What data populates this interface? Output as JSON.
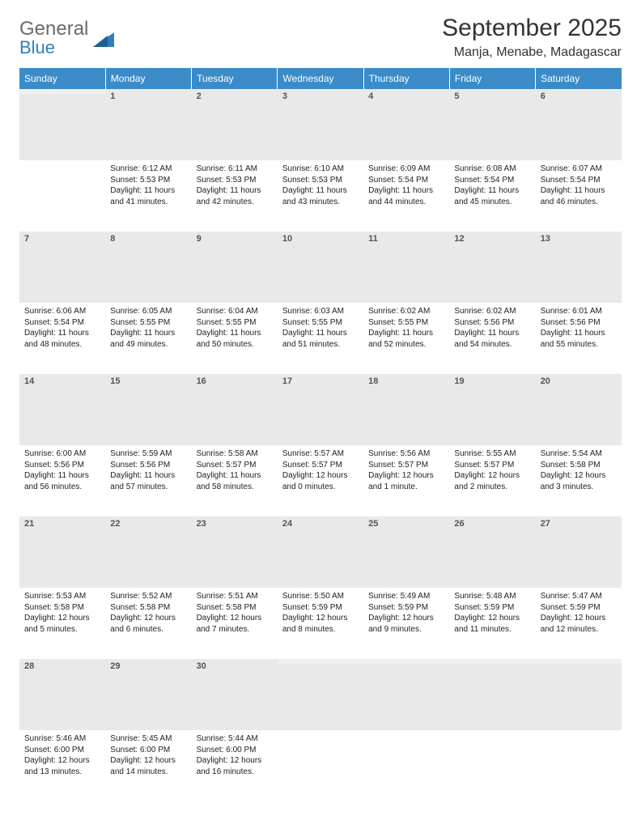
{
  "logo": {
    "word1": "General",
    "word2": "Blue"
  },
  "title": "September 2025",
  "location": "Manja, Menabe, Madagascar",
  "colors": {
    "header_bg": "#3b8bc8",
    "header_text": "#ffffff",
    "rule": "#2f6fa3",
    "daynum_bg": "#e9e9e9",
    "logo_gray": "#6b6b6b",
    "logo_blue": "#2f7ec0"
  },
  "weekdays": [
    "Sunday",
    "Monday",
    "Tuesday",
    "Wednesday",
    "Thursday",
    "Friday",
    "Saturday"
  ],
  "weeks": [
    [
      {
        "day": "",
        "sunrise": "",
        "sunset": "",
        "daylight": ""
      },
      {
        "day": "1",
        "sunrise": "Sunrise: 6:12 AM",
        "sunset": "Sunset: 5:53 PM",
        "daylight": "Daylight: 11 hours and 41 minutes."
      },
      {
        "day": "2",
        "sunrise": "Sunrise: 6:11 AM",
        "sunset": "Sunset: 5:53 PM",
        "daylight": "Daylight: 11 hours and 42 minutes."
      },
      {
        "day": "3",
        "sunrise": "Sunrise: 6:10 AM",
        "sunset": "Sunset: 5:53 PM",
        "daylight": "Daylight: 11 hours and 43 minutes."
      },
      {
        "day": "4",
        "sunrise": "Sunrise: 6:09 AM",
        "sunset": "Sunset: 5:54 PM",
        "daylight": "Daylight: 11 hours and 44 minutes."
      },
      {
        "day": "5",
        "sunrise": "Sunrise: 6:08 AM",
        "sunset": "Sunset: 5:54 PM",
        "daylight": "Daylight: 11 hours and 45 minutes."
      },
      {
        "day": "6",
        "sunrise": "Sunrise: 6:07 AM",
        "sunset": "Sunset: 5:54 PM",
        "daylight": "Daylight: 11 hours and 46 minutes."
      }
    ],
    [
      {
        "day": "7",
        "sunrise": "Sunrise: 6:06 AM",
        "sunset": "Sunset: 5:54 PM",
        "daylight": "Daylight: 11 hours and 48 minutes."
      },
      {
        "day": "8",
        "sunrise": "Sunrise: 6:05 AM",
        "sunset": "Sunset: 5:55 PM",
        "daylight": "Daylight: 11 hours and 49 minutes."
      },
      {
        "day": "9",
        "sunrise": "Sunrise: 6:04 AM",
        "sunset": "Sunset: 5:55 PM",
        "daylight": "Daylight: 11 hours and 50 minutes."
      },
      {
        "day": "10",
        "sunrise": "Sunrise: 6:03 AM",
        "sunset": "Sunset: 5:55 PM",
        "daylight": "Daylight: 11 hours and 51 minutes."
      },
      {
        "day": "11",
        "sunrise": "Sunrise: 6:02 AM",
        "sunset": "Sunset: 5:55 PM",
        "daylight": "Daylight: 11 hours and 52 minutes."
      },
      {
        "day": "12",
        "sunrise": "Sunrise: 6:02 AM",
        "sunset": "Sunset: 5:56 PM",
        "daylight": "Daylight: 11 hours and 54 minutes."
      },
      {
        "day": "13",
        "sunrise": "Sunrise: 6:01 AM",
        "sunset": "Sunset: 5:56 PM",
        "daylight": "Daylight: 11 hours and 55 minutes."
      }
    ],
    [
      {
        "day": "14",
        "sunrise": "Sunrise: 6:00 AM",
        "sunset": "Sunset: 5:56 PM",
        "daylight": "Daylight: 11 hours and 56 minutes."
      },
      {
        "day": "15",
        "sunrise": "Sunrise: 5:59 AM",
        "sunset": "Sunset: 5:56 PM",
        "daylight": "Daylight: 11 hours and 57 minutes."
      },
      {
        "day": "16",
        "sunrise": "Sunrise: 5:58 AM",
        "sunset": "Sunset: 5:57 PM",
        "daylight": "Daylight: 11 hours and 58 minutes."
      },
      {
        "day": "17",
        "sunrise": "Sunrise: 5:57 AM",
        "sunset": "Sunset: 5:57 PM",
        "daylight": "Daylight: 12 hours and 0 minutes."
      },
      {
        "day": "18",
        "sunrise": "Sunrise: 5:56 AM",
        "sunset": "Sunset: 5:57 PM",
        "daylight": "Daylight: 12 hours and 1 minute."
      },
      {
        "day": "19",
        "sunrise": "Sunrise: 5:55 AM",
        "sunset": "Sunset: 5:57 PM",
        "daylight": "Daylight: 12 hours and 2 minutes."
      },
      {
        "day": "20",
        "sunrise": "Sunrise: 5:54 AM",
        "sunset": "Sunset: 5:58 PM",
        "daylight": "Daylight: 12 hours and 3 minutes."
      }
    ],
    [
      {
        "day": "21",
        "sunrise": "Sunrise: 5:53 AM",
        "sunset": "Sunset: 5:58 PM",
        "daylight": "Daylight: 12 hours and 5 minutes."
      },
      {
        "day": "22",
        "sunrise": "Sunrise: 5:52 AM",
        "sunset": "Sunset: 5:58 PM",
        "daylight": "Daylight: 12 hours and 6 minutes."
      },
      {
        "day": "23",
        "sunrise": "Sunrise: 5:51 AM",
        "sunset": "Sunset: 5:58 PM",
        "daylight": "Daylight: 12 hours and 7 minutes."
      },
      {
        "day": "24",
        "sunrise": "Sunrise: 5:50 AM",
        "sunset": "Sunset: 5:59 PM",
        "daylight": "Daylight: 12 hours and 8 minutes."
      },
      {
        "day": "25",
        "sunrise": "Sunrise: 5:49 AM",
        "sunset": "Sunset: 5:59 PM",
        "daylight": "Daylight: 12 hours and 9 minutes."
      },
      {
        "day": "26",
        "sunrise": "Sunrise: 5:48 AM",
        "sunset": "Sunset: 5:59 PM",
        "daylight": "Daylight: 12 hours and 11 minutes."
      },
      {
        "day": "27",
        "sunrise": "Sunrise: 5:47 AM",
        "sunset": "Sunset: 5:59 PM",
        "daylight": "Daylight: 12 hours and 12 minutes."
      }
    ],
    [
      {
        "day": "28",
        "sunrise": "Sunrise: 5:46 AM",
        "sunset": "Sunset: 6:00 PM",
        "daylight": "Daylight: 12 hours and 13 minutes."
      },
      {
        "day": "29",
        "sunrise": "Sunrise: 5:45 AM",
        "sunset": "Sunset: 6:00 PM",
        "daylight": "Daylight: 12 hours and 14 minutes."
      },
      {
        "day": "30",
        "sunrise": "Sunrise: 5:44 AM",
        "sunset": "Sunset: 6:00 PM",
        "daylight": "Daylight: 12 hours and 16 minutes."
      },
      {
        "day": "",
        "sunrise": "",
        "sunset": "",
        "daylight": ""
      },
      {
        "day": "",
        "sunrise": "",
        "sunset": "",
        "daylight": ""
      },
      {
        "day": "",
        "sunrise": "",
        "sunset": "",
        "daylight": ""
      },
      {
        "day": "",
        "sunrise": "",
        "sunset": "",
        "daylight": ""
      }
    ]
  ]
}
